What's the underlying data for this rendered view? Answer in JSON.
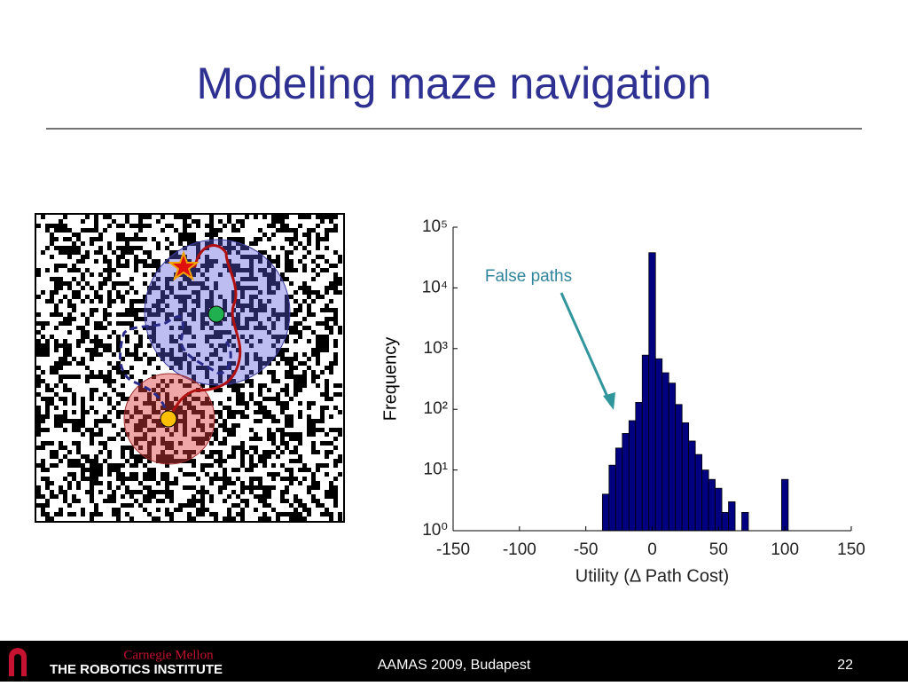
{
  "title": "Modeling maze navigation",
  "chart_data": {
    "type": "histogram",
    "ylabel": "Frequency",
    "xlabel": "Utility (Δ Path Cost)",
    "annotation": "False paths",
    "bins": [
      -37.5,
      -32.5,
      -27.5,
      -22.5,
      -17.5,
      -12.5,
      -7.5,
      -2.5,
      2.5,
      7.5,
      12.5,
      17.5,
      22.5,
      27.5,
      32.5,
      37.5,
      42.5,
      47.5,
      52.5,
      57.5,
      62.5,
      67.5,
      72.5,
      77.5,
      82.5,
      87.5,
      92.5,
      97.5,
      102.5
    ],
    "values": [
      4,
      12,
      23,
      40,
      65,
      130,
      780,
      38000,
      680,
      400,
      270,
      120,
      60,
      30,
      18,
      10,
      7,
      5,
      2,
      3,
      0,
      2,
      0,
      0,
      0,
      0,
      0,
      7
    ],
    "color": "#000080",
    "log_y": true,
    "xlim": [
      -150,
      150
    ],
    "xticks": [
      -150,
      -100,
      -50,
      0,
      50,
      100,
      150
    ],
    "ylim": [
      1,
      100000
    ],
    "yticks": [
      {
        "value": 1,
        "label": "10⁰"
      },
      {
        "value": 10,
        "label": "10¹"
      },
      {
        "value": 100,
        "label": "10²"
      },
      {
        "value": 1000,
        "label": "10³"
      },
      {
        "value": 10000,
        "label": "10⁴"
      },
      {
        "value": 100000,
        "label": "10⁵"
      }
    ]
  },
  "footer": {
    "logo_top": "Carnegie Mellon",
    "logo_bottom": "THE ROBOTICS INSTITUTE",
    "event": "AAMAS 2009, Budapest",
    "page": "22"
  }
}
